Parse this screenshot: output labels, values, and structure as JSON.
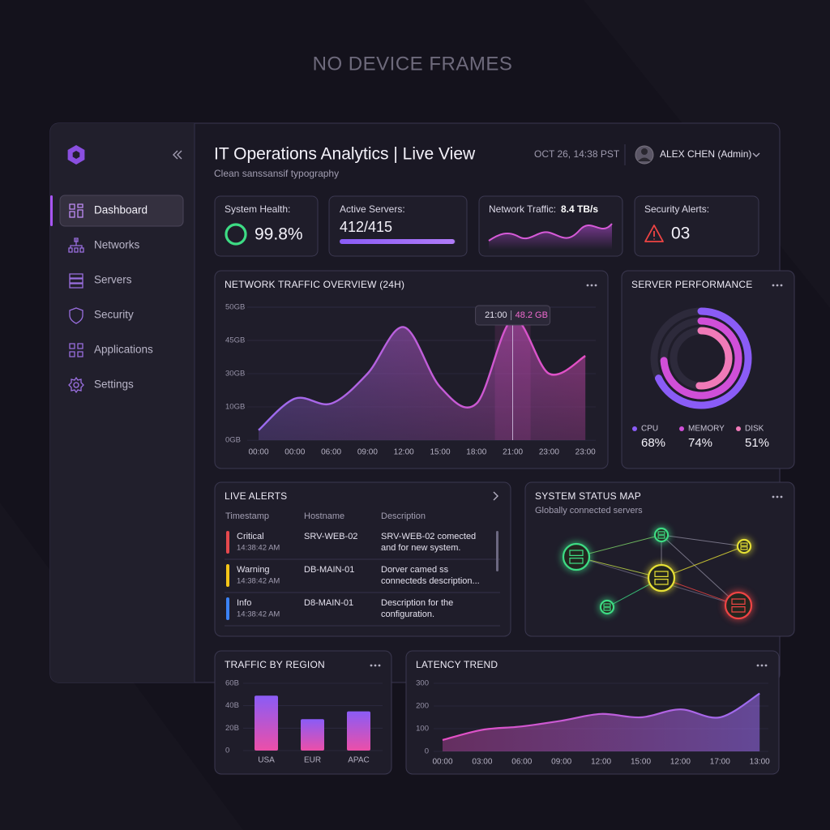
{
  "caption": "NO DEVICE FRAMES",
  "header": {
    "title": "IT Operations Analytics | Live View",
    "subtitle": "Clean sanssansif typography",
    "datetime": "OCT 26, 14:38 PST",
    "user": "ALEX CHEN (Admin)"
  },
  "sidebar": {
    "items": [
      "Dashboard",
      "Networks",
      "Servers",
      "Security",
      "Applications",
      "Settings"
    ]
  },
  "kpis": {
    "health": {
      "label": "System Health:",
      "value": "99.8%"
    },
    "servers": {
      "label": "Active Servers:",
      "value": "412/415",
      "active": 412,
      "total": 415
    },
    "traffic": {
      "label": "Network Traffic:",
      "value": "8.4 TB/s"
    },
    "alerts": {
      "label": "Security Alerts:",
      "value": "03"
    }
  },
  "network_traffic": {
    "type": "line",
    "title": "NETWORK TRAFFIC OVERVIEW (24H)",
    "categories": [
      "00:00",
      "00:00",
      "06:00",
      "09:00",
      "12:00",
      "15:00",
      "18:00",
      "21:00",
      "23:00",
      "23:00"
    ],
    "values": [
      3,
      15,
      12,
      30,
      47,
      22,
      12,
      48.2,
      30,
      38
    ],
    "gradient": [
      "#9b6cf0",
      "#e54fc4"
    ],
    "ylim": [
      0,
      50
    ],
    "yticks": [
      {
        "value": 0,
        "label": "0GB"
      },
      {
        "value": 10,
        "label": "10GB"
      },
      {
        "value": 30,
        "label": "30GB"
      },
      {
        "value": 45,
        "label": "45GB"
      },
      {
        "value": 50,
        "label": "50GB"
      }
    ],
    "tooltip": {
      "time": "21:00",
      "label": "48.2 GB"
    }
  },
  "server_performance": {
    "type": "radial",
    "title": "SERVER PERFORMANCE",
    "series": [
      {
        "name": "CPU",
        "color": "#8a5cf6",
        "value": 68,
        "value_label": "68%"
      },
      {
        "name": "MEMORY",
        "color": "#d04fd8",
        "value": 74,
        "value_label": "74%"
      },
      {
        "name": "DISK",
        "color": "#f07ab8",
        "value": 51,
        "value_label": "51%"
      }
    ]
  },
  "live_alerts": {
    "title": "LIVE ALERTS",
    "columns": [
      "Timestamp",
      "Hostname",
      "Description"
    ],
    "rows": [
      {
        "level": "Critical",
        "color": "#e5484d",
        "time": "14:38:42 AM",
        "host": "SRV-WEB-02",
        "description": [
          "SRV-WEB-02 comected",
          "and for new system."
        ]
      },
      {
        "level": "Warning",
        "color": "#f5c518",
        "time": "14:38:42 AM",
        "host": "DB-MAIN-01",
        "description": [
          "Dorver camed ss",
          "connecteds description..."
        ]
      },
      {
        "level": "Info",
        "color": "#3b82f6",
        "time": "14:38:42 AM",
        "host": "D8-MAIN-01",
        "description": [
          "Description for the",
          "configuration."
        ]
      }
    ]
  },
  "status_map": {
    "title": "SYSTEM STATUS MAP",
    "subtitle": "Globally connected servers"
  },
  "traffic_by_region": {
    "type": "bar",
    "title": "TRAFFIC BY REGION",
    "categories": [
      "USA",
      "EUR",
      "APAC"
    ],
    "values": [
      49,
      28,
      35
    ],
    "gradient": [
      "#8a5cf6",
      "#ec4fa8"
    ],
    "ylim": [
      0,
      60
    ],
    "yticks": [
      0,
      {
        "value": 20,
        "label": "20B"
      },
      {
        "value": 40,
        "label": "40B"
      },
      {
        "value": 60,
        "label": "60B"
      }
    ]
  },
  "latency_trend": {
    "type": "line",
    "title": "LATENCY TREND",
    "categories": [
      "00:00",
      "03:00",
      "06:00",
      "09:00",
      "12:00",
      "15:00",
      "12:00",
      "17:00",
      "13:00"
    ],
    "values": [
      50,
      95,
      110,
      135,
      165,
      150,
      185,
      150,
      255
    ],
    "gradient": [
      "#e54fc4",
      "#9b6cf0"
    ],
    "ylim": [
      0,
      300
    ],
    "yticks": [
      0,
      100,
      200,
      300
    ]
  }
}
